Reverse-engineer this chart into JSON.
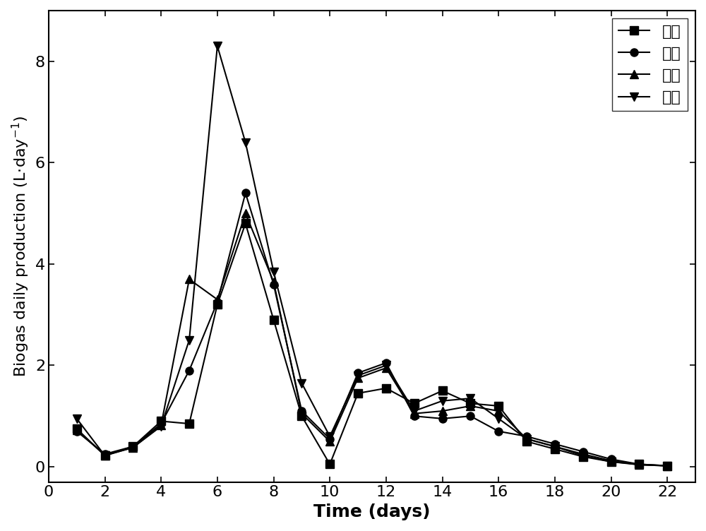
{
  "x": [
    1,
    2,
    3,
    4,
    5,
    6,
    7,
    8,
    9,
    10,
    11,
    12,
    13,
    14,
    15,
    16,
    17,
    18,
    19,
    20,
    21,
    22
  ],
  "series": {
    "对照": [
      0.75,
      0.22,
      0.4,
      0.9,
      0.85,
      3.2,
      4.8,
      2.9,
      1.0,
      0.05,
      1.45,
      1.55,
      1.25,
      1.5,
      1.25,
      1.2,
      0.5,
      0.35,
      0.2,
      0.1,
      0.05,
      0.02
    ],
    "例一": [
      0.7,
      0.25,
      0.4,
      0.85,
      1.9,
      3.25,
      5.4,
      3.6,
      1.1,
      0.55,
      1.85,
      2.05,
      1.0,
      0.95,
      1.0,
      0.7,
      0.6,
      0.45,
      0.3,
      0.15,
      0.05,
      0.02
    ],
    "例二": [
      0.72,
      0.23,
      0.38,
      0.82,
      3.7,
      3.3,
      5.0,
      3.65,
      1.05,
      0.5,
      1.75,
      1.95,
      1.05,
      1.1,
      1.2,
      1.1,
      0.55,
      0.4,
      0.25,
      0.12,
      0.04,
      0.02
    ],
    "例三": [
      0.95,
      0.22,
      0.38,
      0.8,
      2.5,
      8.3,
      6.4,
      3.85,
      1.65,
      0.6,
      1.8,
      2.0,
      1.1,
      1.3,
      1.35,
      0.95,
      0.55,
      0.4,
      0.22,
      0.1,
      0.04,
      0.02
    ]
  },
  "markers": {
    "对照": "s",
    "例一": "o",
    "例二": "^",
    "例三": "v"
  },
  "color": "#000000",
  "linewidth": 1.5,
  "markersize": 8,
  "xlabel": "Time (days)",
  "ylabel": "Biogas daily production (L·day⁻¹)",
  "xlim": [
    0,
    23
  ],
  "ylim": [
    -0.3,
    9.0
  ],
  "xticks": [
    0,
    2,
    4,
    6,
    8,
    10,
    12,
    14,
    16,
    18,
    20,
    22
  ],
  "yticks": [
    0,
    2,
    4,
    6,
    8
  ],
  "xlabel_fontsize": 18,
  "ylabel_fontsize": 16,
  "tick_fontsize": 16,
  "legend_fontsize": 16,
  "legend_loc": "upper right",
  "background_color": "#ffffff"
}
